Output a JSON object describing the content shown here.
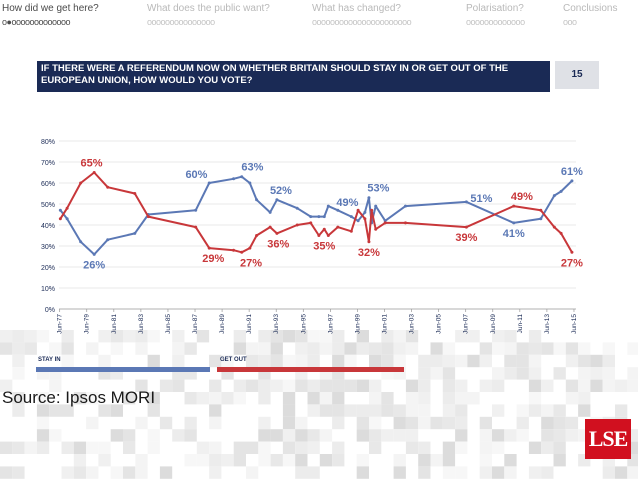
{
  "nav": {
    "items": [
      {
        "label": "How did we get here?",
        "dots": "o●ooooooooooooo",
        "active": true
      },
      {
        "label": "What does the public want?",
        "dots": "ooooooooooooooo",
        "active": false
      },
      {
        "label": "What has changed?",
        "dots": "oooooooooooooooooooooo",
        "active": false
      },
      {
        "label": "Polarisation?",
        "dots": "ooooooooooooo",
        "active": false
      },
      {
        "label": "Conclusions",
        "dots": "ooo",
        "active": false
      }
    ]
  },
  "header": {
    "line1": "IF THERE WERE A REFERENDUM NOW ON WHETHER BRITAIN SHOULD STAY IN OR GET OUT OF THE",
    "line2": "EUROPEAN UNION, HOW WOULD YOU VOTE?",
    "slide_number": "15"
  },
  "legend": {
    "stay_in": "STAY IN",
    "get_out": "GET OUT"
  },
  "source": "Source: Ipsos MORI",
  "logo": "LSE",
  "colors": {
    "stay_in": "#5b78b5",
    "get_out": "#c8373a",
    "header": "#1a2a55",
    "logo": "#d1101f"
  },
  "chart_data": {
    "type": "line",
    "xrange": [
      1977.4,
      2015.6
    ],
    "ylim": [
      0,
      80
    ],
    "yticks": [
      "0%",
      "10%",
      "20%",
      "30%",
      "40%",
      "50%",
      "60%",
      "70%",
      "80%"
    ],
    "xticks": [
      "Jun-77",
      "Jun-79",
      "Jun-81",
      "Jun-83",
      "Jun-85",
      "Jun-87",
      "Jun-89",
      "Jun-91",
      "Jun-93",
      "Jun-95",
      "Jun-97",
      "Jun-99",
      "Jun-01",
      "Jun-03",
      "Jun-05",
      "Jun-07",
      "Jun-09",
      "Jun-11",
      "Jun-13",
      "Jun-15"
    ],
    "series": [
      {
        "name": "STAY IN",
        "color": "#5b78b5",
        "x": [
          1977.5,
          1978.0,
          1979.0,
          1980.0,
          1981.0,
          1983.0,
          1984.0,
          1987.5,
          1988.5,
          1990.3,
          1990.9,
          1991.5,
          1992.0,
          1993.0,
          1993.5,
          1995.0,
          1996.0,
          1996.6,
          1997.0,
          1997.3,
          1998.0,
          1999.0,
          1999.5,
          2000.0,
          2000.3,
          2000.5,
          2000.8,
          2001.5,
          2003.0,
          2007.5,
          2011.0,
          2013.0,
          2014.0,
          2014.5,
          2015.3
        ],
        "y": [
          47,
          43,
          32,
          26,
          33,
          36,
          45,
          47,
          60,
          62,
          63,
          60,
          52,
          46,
          52,
          48,
          44,
          44,
          44,
          49,
          47,
          44,
          42,
          46,
          53,
          41,
          49,
          42,
          49,
          51,
          41,
          43,
          54,
          56,
          61
        ]
      },
      {
        "name": "GET OUT",
        "color": "#c8373a",
        "x": [
          1977.5,
          1978.0,
          1979.0,
          1980.0,
          1981.0,
          1983.0,
          1984.0,
          1987.5,
          1988.5,
          1990.3,
          1990.9,
          1991.5,
          1992.0,
          1993.0,
          1993.5,
          1995.0,
          1996.0,
          1996.6,
          1997.0,
          1997.3,
          1998.0,
          1999.0,
          1999.5,
          2000.0,
          2000.3,
          2000.5,
          2000.8,
          2001.5,
          2003.0,
          2007.5,
          2011.0,
          2013.0,
          2014.0,
          2014.5,
          2015.3
        ],
        "y": [
          43,
          48,
          60,
          65,
          58,
          55,
          44,
          39,
          29,
          28,
          27,
          29,
          35,
          39,
          36,
          40,
          41,
          35,
          38,
          35,
          39,
          37,
          47,
          43,
          32,
          47,
          38,
          41,
          41,
          39,
          49,
          47,
          39,
          36,
          27
        ]
      }
    ],
    "data_labels": [
      {
        "text": "65%",
        "x": 1979.8,
        "y": 65,
        "series": 1,
        "pos": "above"
      },
      {
        "text": "26%",
        "x": 1980.0,
        "y": 26,
        "series": 0,
        "pos": "below"
      },
      {
        "text": "60%",
        "x": 1988.0,
        "y": 60,
        "series": 0,
        "pos": "above-left"
      },
      {
        "text": "63%",
        "x": 1991.1,
        "y": 63,
        "series": 0,
        "pos": "above-right"
      },
      {
        "text": "29%",
        "x": 1988.8,
        "y": 29,
        "series": 1,
        "pos": "below"
      },
      {
        "text": "27%",
        "x": 1991.0,
        "y": 27,
        "series": 1,
        "pos": "below-right"
      },
      {
        "text": "52%",
        "x": 1993.8,
        "y": 52,
        "series": 0,
        "pos": "above"
      },
      {
        "text": "36%",
        "x": 1993.6,
        "y": 36,
        "series": 1,
        "pos": "below"
      },
      {
        "text": "49%",
        "x": 1997.6,
        "y": 49,
        "series": 0,
        "pos": "right"
      },
      {
        "text": "35%",
        "x": 1997.0,
        "y": 35,
        "series": 1,
        "pos": "below"
      },
      {
        "text": "53%",
        "x": 2001.0,
        "y": 53,
        "series": 0,
        "pos": "above"
      },
      {
        "text": "32%",
        "x": 2000.3,
        "y": 32,
        "series": 1,
        "pos": "below"
      },
      {
        "text": "51%",
        "x": 2007.5,
        "y": 51,
        "series": 0,
        "pos": "right"
      },
      {
        "text": "39%",
        "x": 2007.5,
        "y": 39,
        "series": 1,
        "pos": "below"
      },
      {
        "text": "49%",
        "x": 2011.6,
        "y": 49,
        "series": 1,
        "pos": "above"
      },
      {
        "text": "41%",
        "x": 2011.0,
        "y": 41,
        "series": 0,
        "pos": "below"
      },
      {
        "text": "61%",
        "x": 2015.3,
        "y": 61,
        "series": 0,
        "pos": "above"
      },
      {
        "text": "27%",
        "x": 2015.3,
        "y": 27,
        "series": 1,
        "pos": "below"
      }
    ]
  }
}
